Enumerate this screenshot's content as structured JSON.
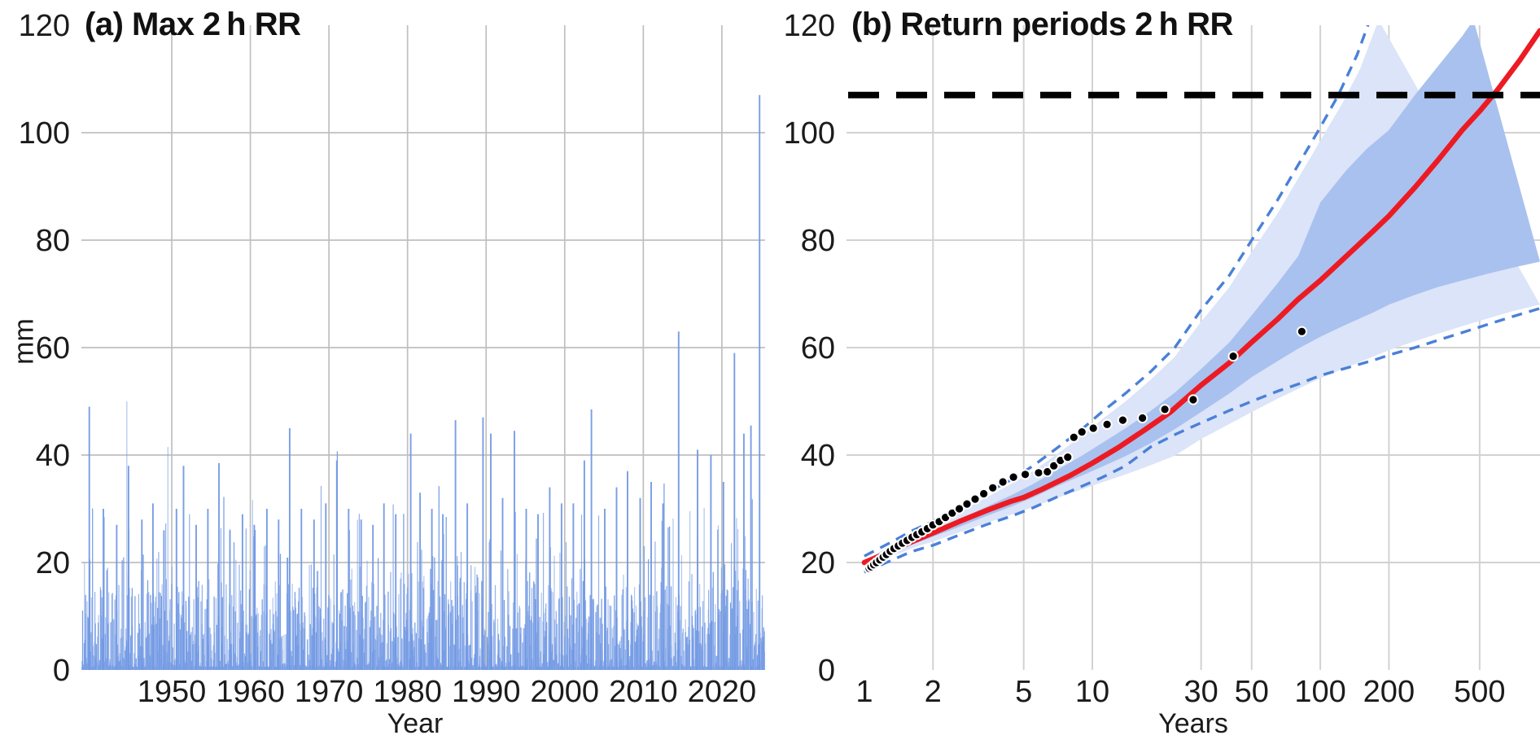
{
  "figure": {
    "kind": "two-panel rainfall extreme-value figure",
    "background": "#ffffff",
    "text_color": "#111111"
  },
  "chart_data": [
    {
      "type": "line",
      "panel": "a",
      "title": "(a) Max 2 h RR",
      "xlabel": "Year",
      "ylabel": "mm",
      "xlim": [
        1938.5,
        2025.5
      ],
      "ylim": [
        0,
        120
      ],
      "x_ticks": [
        1950,
        1960,
        1970,
        1980,
        1990,
        2000,
        2010,
        2020
      ],
      "y_ticks": [
        0,
        20,
        40,
        60,
        80,
        100,
        120
      ],
      "grid": true,
      "series_color": "#7299E4",
      "series_color_light": "#A9C3EF",
      "notable_events_year_mm": [
        [
          1939.5,
          49
        ],
        [
          1941.3,
          30
        ],
        [
          1943.0,
          27
        ],
        [
          1944.5,
          38
        ],
        [
          1946.2,
          28
        ],
        [
          1947.6,
          31
        ],
        [
          1949.0,
          26
        ],
        [
          1950.6,
          30
        ],
        [
          1951.5,
          38
        ],
        [
          1953.1,
          27
        ],
        [
          1954.6,
          30
        ],
        [
          1956.0,
          38.5
        ],
        [
          1957.4,
          26
        ],
        [
          1959.0,
          29
        ],
        [
          1960.5,
          27
        ],
        [
          1962.1,
          30
        ],
        [
          1963.6,
          28
        ],
        [
          1965.0,
          45
        ],
        [
          1966.5,
          30
        ],
        [
          1968.1,
          28
        ],
        [
          1969.6,
          31
        ],
        [
          1971.0,
          39
        ],
        [
          1972.5,
          30
        ],
        [
          1974.1,
          28
        ],
        [
          1975.6,
          27
        ],
        [
          1977.0,
          31
        ],
        [
          1978.5,
          29
        ],
        [
          1980.4,
          44
        ],
        [
          1981.6,
          33
        ],
        [
          1983.1,
          30
        ],
        [
          1984.5,
          29
        ],
        [
          1986.1,
          46.5
        ],
        [
          1987.6,
          31
        ],
        [
          1989.6,
          47
        ],
        [
          1990.6,
          44
        ],
        [
          1992.1,
          32
        ],
        [
          1993.6,
          44.5
        ],
        [
          1995.1,
          30
        ],
        [
          1996.6,
          29
        ],
        [
          1998.1,
          34
        ],
        [
          1999.6,
          31
        ],
        [
          2001.1,
          31
        ],
        [
          2002.5,
          39
        ],
        [
          2003.4,
          48.5
        ],
        [
          2005.1,
          30
        ],
        [
          2006.6,
          34
        ],
        [
          2008.0,
          37
        ],
        [
          2009.6,
          32
        ],
        [
          2011.0,
          35
        ],
        [
          2012.5,
          31
        ],
        [
          2014.5,
          63
        ],
        [
          2016.9,
          41
        ],
        [
          2018.6,
          40
        ],
        [
          2020.2,
          35
        ],
        [
          2021.6,
          59
        ],
        [
          2022.8,
          44
        ],
        [
          2023.7,
          45.5
        ],
        [
          2024.8,
          107
        ]
      ],
      "background_noise": {
        "description": "dense record of smaller 2h rainfall events, mostly 0-16 mm with frequent bursts to ~40 mm",
        "count": 1450,
        "seed": 7,
        "base_max_mm": 16,
        "burst_chance": 0.3,
        "burst_extra_mm": 10,
        "rare_chance": 0.05,
        "rare_extra_mm": 18
      }
    },
    {
      "type": "line",
      "panel": "b",
      "title": "(b) Return periods 2 h RR",
      "xlabel": "Years",
      "ylabel": "mm",
      "xscale": "log",
      "xlim": [
        0.835,
        920
      ],
      "ylim": [
        0,
        120
      ],
      "x_ticks": [
        1,
        2,
        5,
        10,
        30,
        50,
        100,
        200,
        500
      ],
      "y_ticks": [
        0,
        20,
        40,
        60,
        80,
        100,
        120
      ],
      "grid": true,
      "observed_max_line_mm": 107,
      "colors": {
        "fit": "#EC1B23",
        "band_inner": "#A9C1EE",
        "band_outer": "#DBE4F8",
        "dashed_ci": "#4A80D8",
        "obs_line": "#000000",
        "points": "#000000"
      },
      "fit_curve_rp_mm": [
        [
          1.0,
          20.0
        ],
        [
          1.3,
          22.0
        ],
        [
          1.6,
          23.8
        ],
        [
          2,
          25.5
        ],
        [
          2.6,
          27.6
        ],
        [
          3.4,
          29.6
        ],
        [
          4.4,
          31.4
        ],
        [
          5,
          32.1
        ],
        [
          6,
          33.6
        ],
        [
          8,
          36.2
        ],
        [
          10,
          38.5
        ],
        [
          13,
          41.4
        ],
        [
          17,
          44.7
        ],
        [
          22,
          48.0
        ],
        [
          30,
          53.0
        ],
        [
          40,
          57.2
        ],
        [
          50,
          61.0
        ],
        [
          65,
          65.3
        ],
        [
          80,
          69.0
        ],
        [
          100,
          72.5
        ],
        [
          130,
          77.0
        ],
        [
          170,
          81.6
        ],
        [
          200,
          84.5
        ],
        [
          260,
          89.8
        ],
        [
          330,
          95.0
        ],
        [
          420,
          100.5
        ],
        [
          500,
          104.0
        ],
        [
          600,
          108.0
        ],
        [
          750,
          113.5
        ],
        [
          920,
          119.0
        ]
      ],
      "ci_dashed_upper_rp_mm": [
        [
          1.0,
          21.2
        ],
        [
          1.3,
          23.7
        ],
        [
          1.6,
          25.8
        ],
        [
          2,
          27.7
        ],
        [
          2.6,
          30.1
        ],
        [
          3.4,
          32.8
        ],
        [
          4.4,
          35.4
        ],
        [
          5.5,
          38.0
        ],
        [
          7,
          41.3
        ],
        [
          9,
          44.8
        ],
        [
          11,
          48.0
        ],
        [
          14,
          51.5
        ],
        [
          18,
          55.5
        ],
        [
          23,
          60.0
        ],
        [
          30,
          67.0
        ],
        [
          40,
          73.5
        ],
        [
          50,
          80.0
        ],
        [
          65,
          87.5
        ],
        [
          80,
          94.0
        ],
        [
          100,
          101.0
        ],
        [
          120,
          107.0
        ],
        [
          145,
          114.5
        ],
        [
          165,
          121.0
        ]
      ],
      "ci_dashed_lower_rp_mm": [
        [
          1.0,
          18.2
        ],
        [
          1.3,
          20.3
        ],
        [
          1.6,
          22.0
        ],
        [
          2,
          23.2
        ],
        [
          2.6,
          25.1
        ],
        [
          3.4,
          27.0
        ],
        [
          4.4,
          28.6
        ],
        [
          5.5,
          30.2
        ],
        [
          7,
          32.2
        ],
        [
          9,
          34.2
        ],
        [
          11,
          35.8
        ],
        [
          14,
          38.0
        ],
        [
          18,
          41.5
        ],
        [
          23,
          43.8
        ],
        [
          30,
          46.0
        ],
        [
          40,
          48.3
        ],
        [
          50,
          50.0
        ],
        [
          65,
          51.9
        ],
        [
          80,
          53.2
        ],
        [
          100,
          54.8
        ],
        [
          130,
          56.2
        ],
        [
          170,
          57.6
        ],
        [
          200,
          58.6
        ],
        [
          260,
          60.0
        ],
        [
          330,
          61.4
        ],
        [
          420,
          62.8
        ],
        [
          550,
          64.4
        ],
        [
          700,
          65.8
        ],
        [
          920,
          67.3
        ]
      ],
      "ci_outer_band_upper_rp_mm": [
        [
          1.05,
          20.8
        ],
        [
          1.3,
          23.2
        ],
        [
          1.6,
          25.2
        ],
        [
          2,
          27.0
        ],
        [
          2.6,
          29.4
        ],
        [
          3.4,
          32.0
        ],
        [
          4.4,
          34.6
        ],
        [
          5.5,
          37.0
        ],
        [
          7,
          40.2
        ],
        [
          9,
          43.6
        ],
        [
          11,
          46.6
        ],
        [
          14,
          50.0
        ],
        [
          18,
          54.0
        ],
        [
          23,
          58.3
        ],
        [
          30,
          64.8
        ],
        [
          40,
          71.3
        ],
        [
          50,
          77.8
        ],
        [
          65,
          85.0
        ],
        [
          80,
          91.5
        ],
        [
          100,
          98.5
        ],
        [
          125,
          105.5
        ],
        [
          150,
          112.0
        ],
        [
          180,
          121.0
        ]
      ],
      "ci_outer_band_lower_rp_mm": [
        [
          1.05,
          20.2
        ],
        [
          1.4,
          21.6
        ],
        [
          1.7,
          23.0
        ],
        [
          2,
          23.9
        ],
        [
          2.6,
          25.6
        ],
        [
          3.4,
          27.3
        ],
        [
          4.4,
          28.9
        ],
        [
          5.5,
          30.3
        ],
        [
          7,
          32.0
        ],
        [
          9,
          33.6
        ],
        [
          11,
          34.9
        ],
        [
          14,
          36.4
        ],
        [
          18,
          38.1
        ],
        [
          23,
          39.9
        ],
        [
          30,
          43.0
        ],
        [
          40,
          45.8
        ],
        [
          50,
          48.0
        ],
        [
          65,
          50.5
        ],
        [
          80,
          52.3
        ],
        [
          100,
          54.3
        ],
        [
          130,
          56.3
        ],
        [
          170,
          58.3
        ],
        [
          200,
          59.5
        ],
        [
          260,
          61.2
        ],
        [
          330,
          62.6
        ],
        [
          420,
          64.0
        ],
        [
          550,
          65.5
        ],
        [
          700,
          66.8
        ],
        [
          920,
          68.0
        ]
      ],
      "ci_inner_band_upper_rp_mm": [
        [
          1.0,
          20.5
        ],
        [
          1.3,
          22.7
        ],
        [
          1.6,
          24.4
        ],
        [
          2,
          26.0
        ],
        [
          2.6,
          28.0
        ],
        [
          3.4,
          30.3
        ],
        [
          4.4,
          32.5
        ],
        [
          5.5,
          34.6
        ],
        [
          7,
          37.2
        ],
        [
          9,
          39.9
        ],
        [
          11,
          42.2
        ],
        [
          14,
          45.0
        ],
        [
          18,
          48.2
        ],
        [
          23,
          51.6
        ],
        [
          30,
          56.0
        ],
        [
          40,
          61.0
        ],
        [
          50,
          66.0
        ],
        [
          65,
          72.0
        ],
        [
          80,
          77.0
        ],
        [
          100,
          87.0
        ],
        [
          130,
          93.0
        ],
        [
          160,
          97.0
        ],
        [
          200,
          100.5
        ],
        [
          260,
          107.0
        ],
        [
          330,
          112.5
        ],
        [
          420,
          118.0
        ],
        [
          470,
          121.0
        ]
      ],
      "ci_inner_band_lower_rp_mm": [
        [
          1.0,
          19.7
        ],
        [
          1.3,
          21.6
        ],
        [
          1.6,
          23.2
        ],
        [
          2,
          24.8
        ],
        [
          2.6,
          26.6
        ],
        [
          3.4,
          28.6
        ],
        [
          4.4,
          30.4
        ],
        [
          5.5,
          32.1
        ],
        [
          7,
          34.2
        ],
        [
          9,
          36.2
        ],
        [
          11,
          37.8
        ],
        [
          14,
          39.8
        ],
        [
          18,
          42.2
        ],
        [
          23,
          44.8
        ],
        [
          30,
          48.0
        ],
        [
          40,
          51.5
        ],
        [
          50,
          54.5
        ],
        [
          65,
          57.5
        ],
        [
          80,
          59.8
        ],
        [
          100,
          62.0
        ],
        [
          130,
          64.3
        ],
        [
          170,
          66.5
        ],
        [
          200,
          68.0
        ],
        [
          260,
          69.8
        ],
        [
          330,
          71.3
        ],
        [
          420,
          72.5
        ],
        [
          550,
          73.8
        ],
        [
          700,
          74.9
        ],
        [
          920,
          76.0
        ]
      ],
      "empirical_points_rp_mm": [
        [
          1.05,
          18.9
        ],
        [
          1.07,
          19.2
        ],
        [
          1.1,
          19.6
        ],
        [
          1.13,
          20.0
        ],
        [
          1.17,
          20.5
        ],
        [
          1.21,
          21.0
        ],
        [
          1.25,
          21.5
        ],
        [
          1.3,
          22.1
        ],
        [
          1.35,
          22.6
        ],
        [
          1.41,
          23.1
        ],
        [
          1.47,
          23.6
        ],
        [
          1.54,
          24.1
        ],
        [
          1.62,
          24.7
        ],
        [
          1.7,
          25.2
        ],
        [
          1.79,
          25.7
        ],
        [
          1.89,
          26.3
        ],
        [
          2.0,
          27.0
        ],
        [
          2.13,
          27.6
        ],
        [
          2.27,
          28.4
        ],
        [
          2.43,
          29.2
        ],
        [
          2.61,
          30.0
        ],
        [
          2.82,
          30.9
        ],
        [
          3.06,
          31.8
        ],
        [
          3.34,
          32.8
        ],
        [
          3.66,
          33.9
        ],
        [
          4.05,
          35.0
        ],
        [
          4.51,
          35.9
        ],
        [
          5.08,
          36.4
        ],
        [
          5.81,
          36.7
        ],
        [
          6.35,
          36.9
        ],
        [
          6.78,
          38.0
        ],
        [
          7.25,
          39.0
        ],
        [
          7.8,
          39.6
        ],
        [
          8.3,
          43.3
        ],
        [
          9.0,
          44.3
        ],
        [
          10.1,
          45.0
        ],
        [
          11.6,
          45.7
        ],
        [
          13.6,
          46.5
        ],
        [
          16.6,
          46.9
        ],
        [
          20.8,
          48.5
        ],
        [
          27.7,
          50.3
        ],
        [
          41.5,
          58.4
        ],
        [
          83.0,
          63.0
        ]
      ]
    }
  ],
  "style": {
    "grid_color_a": "#BFBFBF",
    "grid_color_b": "#D2D2D2",
    "tick_color": "#1B1B1B"
  }
}
